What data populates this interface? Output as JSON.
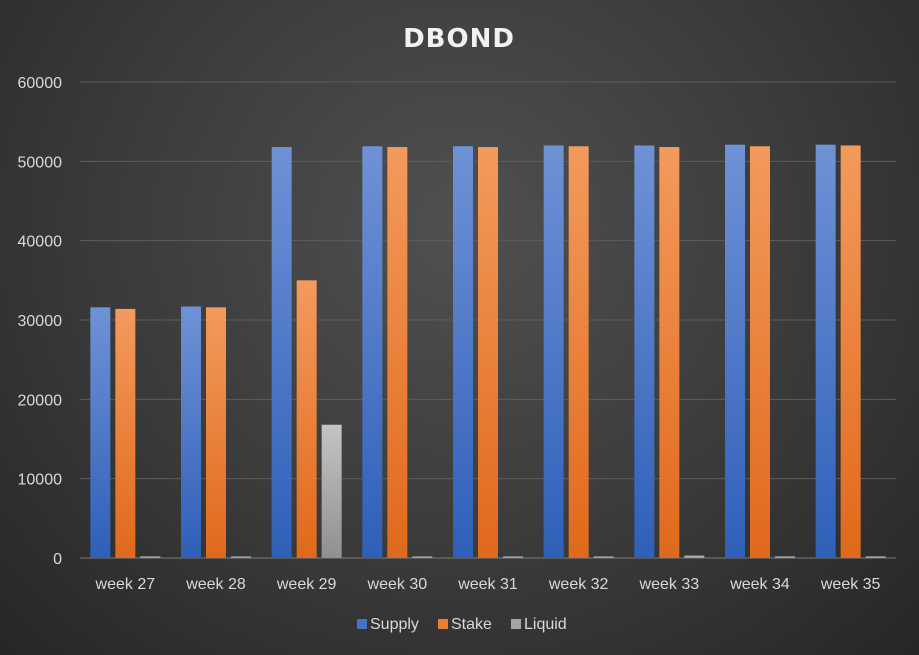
{
  "chart_data": {
    "type": "bar",
    "title": "DBOND",
    "xlabel": "",
    "ylabel": "",
    "ylim": [
      0,
      60000
    ],
    "yticks": [
      0,
      10000,
      20000,
      30000,
      40000,
      50000,
      60000
    ],
    "grid": true,
    "legend_position": "bottom",
    "categories": [
      "week 27",
      "week 28",
      "week 29",
      "week 30",
      "week 31",
      "week 32",
      "week 33",
      "week 34",
      "week 35"
    ],
    "series": [
      {
        "name": "Supply",
        "color": "#4472c4",
        "values": [
          31600,
          31700,
          51800,
          51900,
          51900,
          52000,
          52000,
          52100,
          52100
        ]
      },
      {
        "name": "Stake",
        "color": "#ed7d31",
        "values": [
          31400,
          31600,
          35000,
          51800,
          51800,
          51900,
          51800,
          51900,
          52000
        ]
      },
      {
        "name": "Liquid",
        "color": "#a5a5a5",
        "values": [
          200,
          100,
          16800,
          100,
          100,
          100,
          300,
          200,
          200
        ]
      }
    ]
  }
}
